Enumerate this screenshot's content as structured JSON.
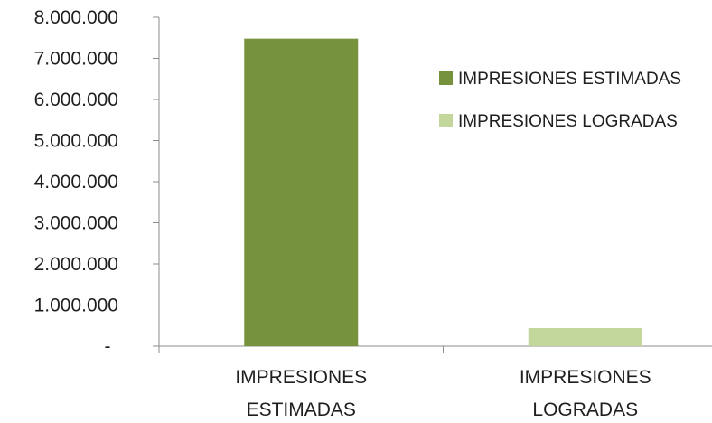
{
  "chart_data": {
    "type": "bar",
    "categories": [
      "IMPRESIONES ESTIMADAS",
      "IMPRESIONES LOGRADAS"
    ],
    "category_label_lines": [
      [
        "IMPRESIONES",
        "ESTIMADAS"
      ],
      [
        "IMPRESIONES",
        "LOGRADAS"
      ]
    ],
    "values": [
      7480000,
      440000
    ],
    "bar_colors": [
      "#76923c",
      "#c3d69b"
    ],
    "ylim": [
      0,
      8000000
    ],
    "y_ticks": [
      0,
      1000000,
      2000000,
      3000000,
      4000000,
      5000000,
      6000000,
      7000000,
      8000000
    ],
    "y_tick_labels": [
      "-",
      "1.000.000",
      "2.000.000",
      "3.000.000",
      "4.000.000",
      "5.000.000",
      "6.000.000",
      "7.000.000",
      "8.000.000"
    ],
    "grid": false,
    "legend_position": "right",
    "legend": [
      {
        "label": "IMPRESIONES ESTIMADAS",
        "color": "#76923c"
      },
      {
        "label": "IMPRESIONES LOGRADAS",
        "color": "#c3d69b"
      }
    ],
    "title": "",
    "xlabel": "",
    "ylabel": ""
  }
}
